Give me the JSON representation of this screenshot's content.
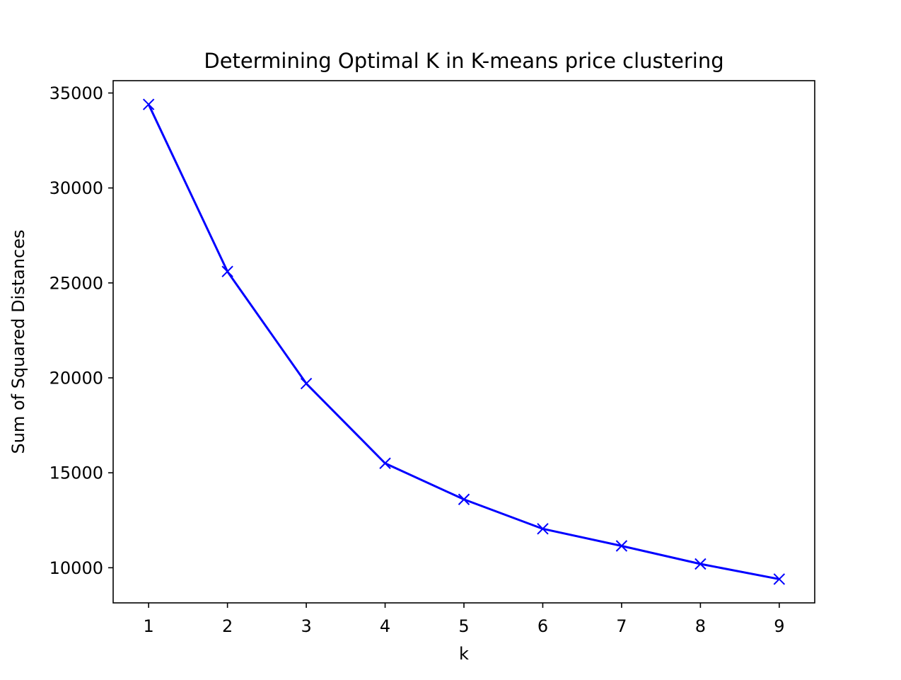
{
  "chart_data": {
    "type": "line",
    "title": "Determining Optimal K in K-means price clustering",
    "xlabel": "k",
    "ylabel": "Sum of Squared Distances",
    "x": [
      1,
      2,
      3,
      4,
      5,
      6,
      7,
      8,
      9
    ],
    "series": [
      {
        "values": [
          34400,
          25600,
          19700,
          15500,
          13600,
          12050,
          11150,
          10200,
          9400
        ],
        "color": "#0000ff",
        "marker": "x"
      }
    ],
    "x_ticks": [
      1,
      2,
      3,
      4,
      5,
      6,
      7,
      8,
      9
    ],
    "x_tick_labels": [
      "1",
      "2",
      "3",
      "4",
      "5",
      "6",
      "7",
      "8",
      "9"
    ],
    "y_ticks": [
      10000,
      15000,
      20000,
      25000,
      30000,
      35000
    ],
    "y_tick_labels": [
      "10000",
      "15000",
      "20000",
      "25000",
      "30000",
      "35000"
    ],
    "xlim": [
      0.55,
      9.45
    ],
    "ylim": [
      8150,
      35650
    ],
    "grid": false,
    "legend": "none"
  }
}
